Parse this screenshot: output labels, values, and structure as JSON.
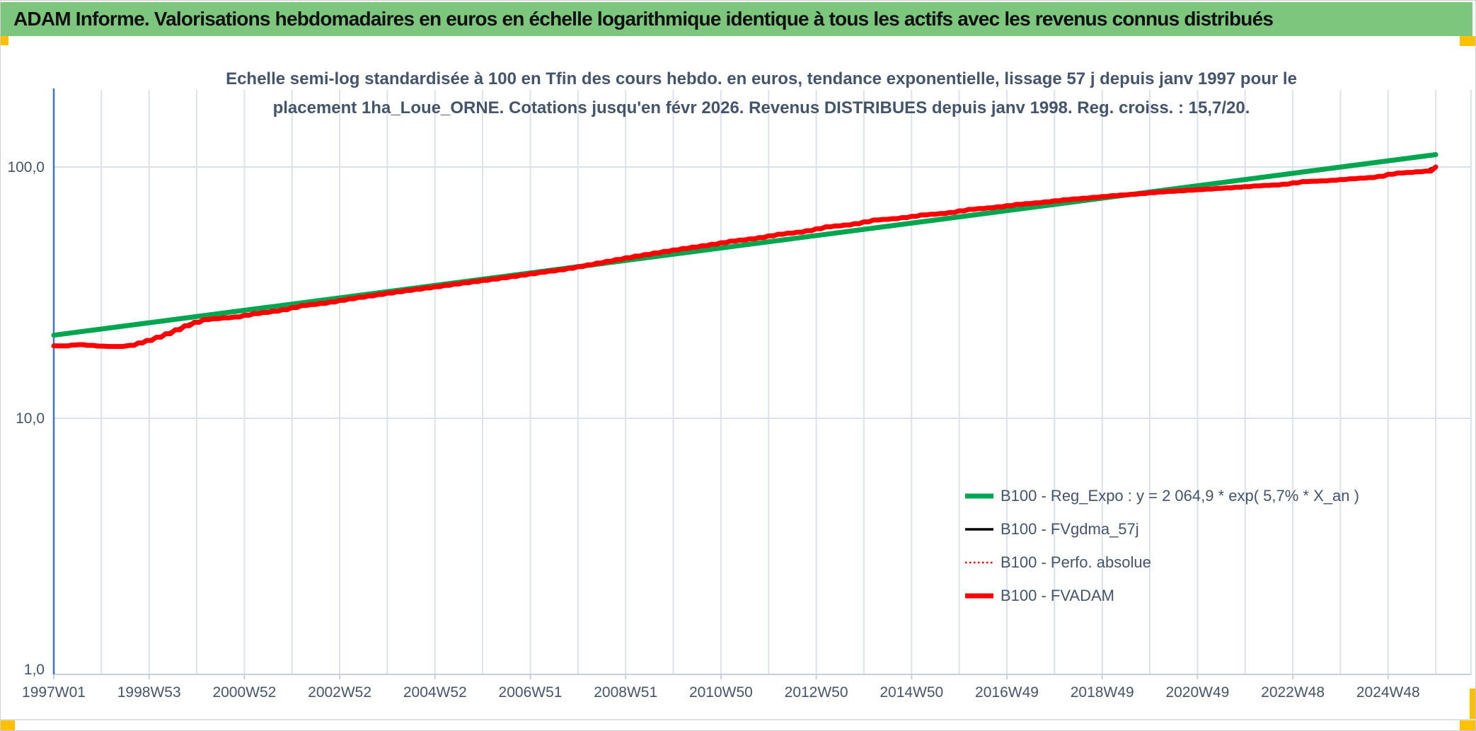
{
  "window": {
    "title": "ADAM Informe. Valorisations hebdomadaires en euros en échelle logarithmique identique à tous les actifs avec les revenus connus distribués",
    "titlebar_color": "#7CC67E",
    "accent_color": "#FFC000"
  },
  "chart": {
    "subtitle_line1": "Echelle semi-log standardisée à 100 en Tfin des cours hebdo. en euros, tendance exponentielle, lissage 57 j depuis janv 1997 pour le",
    "subtitle_line2": "placement 1ha_Loue_ORNE. Cotations jusqu'en févr 2026. Revenus DISTRIBUES depuis janv 1998. Reg. croiss. : 15,7/20.",
    "text_color": "#44546A",
    "grid_color": "#DCE1EA",
    "axis_line_color": "#C8D0DC",
    "y_axis_color": "#4472C4"
  },
  "chart_data": {
    "type": "line",
    "title": "Echelle semi-log standardisée à 100 en Tfin des cours hebdo. en euros, tendance exponentielle, lissage 57 j depuis janv 1997 pour le placement 1ha_Loue_ORNE. Cotations jusqu'en févr 2026. Revenus DISTRIBUES depuis janv 1998. Reg. croiss. : 15,7/20.",
    "x_axis": {
      "unit": "ISO week (weekly quotes)",
      "range_years": [
        1997.0,
        2026.75
      ],
      "ticks": [
        {
          "t": 1997.0,
          "label": "1997W01"
        },
        {
          "t": 1999.0,
          "label": "1998W53"
        },
        {
          "t": 2001.0,
          "label": "2000W52"
        },
        {
          "t": 2003.0,
          "label": "2002W52"
        },
        {
          "t": 2005.0,
          "label": "2004W52"
        },
        {
          "t": 2007.0,
          "label": "2006W51"
        },
        {
          "t": 2009.0,
          "label": "2008W51"
        },
        {
          "t": 2011.0,
          "label": "2010W50"
        },
        {
          "t": 2013.0,
          "label": "2012W50"
        },
        {
          "t": 2015.0,
          "label": "2014W50"
        },
        {
          "t": 2017.0,
          "label": "2016W49"
        },
        {
          "t": 2019.0,
          "label": "2018W49"
        },
        {
          "t": 2021.0,
          "label": "2020W49"
        },
        {
          "t": 2023.0,
          "label": "2022W48"
        },
        {
          "t": 2025.0,
          "label": "2024W48"
        }
      ]
    },
    "y_axis": {
      "scale": "log",
      "range": [
        1.0,
        200.0
      ],
      "ticks": [
        {
          "v": 100,
          "label": "100,0"
        },
        {
          "v": 10,
          "label": "10,0"
        },
        {
          "v": 1,
          "label": "1,0"
        }
      ]
    },
    "grid": true,
    "legend_position": "inside-right-bottom",
    "series": [
      {
        "name": "B100 - Reg_Expo : y = 2 064,9 * exp( 5,7% *  X_an )",
        "color": "#00A550",
        "style": "solid-thick",
        "points": [
          [
            1997.0,
            21.4
          ],
          [
            2026.0,
            112.0
          ]
        ]
      },
      {
        "name": "B100 - FVgdma_57j",
        "color": "#000000",
        "style": "solid-thin",
        "coincides_with": "B100 - FVADAM"
      },
      {
        "name": "B100 - Perfo. absolue",
        "color": "#FF0000",
        "style": "dotted-thin",
        "coincides_with": "B100 - FVADAM"
      },
      {
        "name": "B100 - FVADAM",
        "color": "#FF0000",
        "style": "solid-thick",
        "points": [
          [
            1997.0,
            19.4
          ],
          [
            1997.3,
            19.4
          ],
          [
            1997.45,
            19.7
          ],
          [
            1997.7,
            19.5
          ],
          [
            1998.05,
            19.3
          ],
          [
            1998.45,
            19.3
          ],
          [
            1998.6,
            19.5
          ],
          [
            1998.95,
            20.4
          ],
          [
            1999.25,
            21.3
          ],
          [
            1999.55,
            22.5
          ],
          [
            1999.85,
            23.8
          ],
          [
            2000.15,
            24.7
          ],
          [
            2000.45,
            25.0
          ],
          [
            2000.8,
            25.3
          ],
          [
            2001.2,
            26.1
          ],
          [
            2001.7,
            26.8
          ],
          [
            2002.2,
            28.1
          ],
          [
            2002.7,
            28.8
          ],
          [
            2003.2,
            29.9
          ],
          [
            2003.7,
            30.9
          ],
          [
            2004.2,
            31.9
          ],
          [
            2004.7,
            32.8
          ],
          [
            2005.2,
            33.8
          ],
          [
            2005.7,
            34.8
          ],
          [
            2006.2,
            35.8
          ],
          [
            2006.7,
            36.9
          ],
          [
            2007.2,
            38.1
          ],
          [
            2007.7,
            39.2
          ],
          [
            2008.2,
            40.8
          ],
          [
            2008.7,
            42.5
          ],
          [
            2009.2,
            44.2
          ],
          [
            2009.7,
            45.8
          ],
          [
            2010.2,
            47.4
          ],
          [
            2010.7,
            48.9
          ],
          [
            2011.2,
            50.7
          ],
          [
            2011.7,
            52.0
          ],
          [
            2012.2,
            54.0
          ],
          [
            2012.7,
            55.3
          ],
          [
            2013.2,
            57.8
          ],
          [
            2013.7,
            59.0
          ],
          [
            2014.2,
            61.5
          ],
          [
            2014.7,
            62.5
          ],
          [
            2015.2,
            64.4
          ],
          [
            2015.7,
            65.5
          ],
          [
            2016.2,
            67.8
          ],
          [
            2016.7,
            69.0
          ],
          [
            2017.2,
            71.0
          ],
          [
            2017.7,
            72.3
          ],
          [
            2018.2,
            74.1
          ],
          [
            2018.7,
            75.4
          ],
          [
            2019.2,
            76.9
          ],
          [
            2019.7,
            78.1
          ],
          [
            2020.2,
            79.6
          ],
          [
            2020.7,
            80.6
          ],
          [
            2021.2,
            81.7
          ],
          [
            2021.7,
            82.8
          ],
          [
            2022.2,
            84.1
          ],
          [
            2022.7,
            85.0
          ],
          [
            2023.2,
            87.5
          ],
          [
            2023.7,
            88.2
          ],
          [
            2024.2,
            89.8
          ],
          [
            2024.7,
            91.0
          ],
          [
            2025.1,
            94.4
          ],
          [
            2025.5,
            95.4
          ],
          [
            2025.8,
            96.4
          ],
          [
            2025.9,
            98.7
          ],
          [
            2026.0,
            100.0
          ]
        ]
      }
    ]
  }
}
